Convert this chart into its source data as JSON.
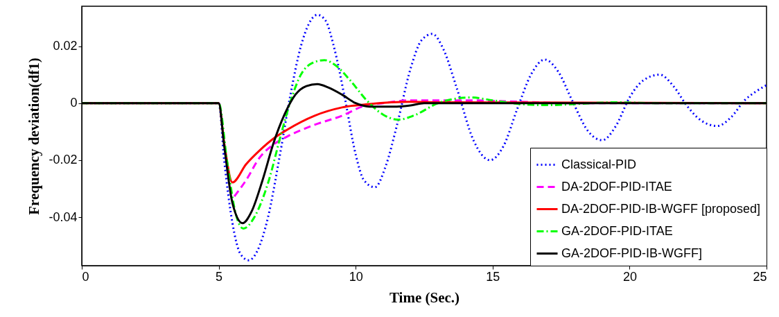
{
  "chart_data": {
    "type": "line",
    "xlabel": "Time (Sec.)",
    "ylabel": "Frequency deviation(df1)",
    "xlim": [
      0,
      25
    ],
    "xticks": [
      0,
      5,
      10,
      15,
      20,
      25
    ],
    "ylim": [
      -0.057,
      0.034
    ],
    "yticks": [
      -0.04,
      -0.02,
      0,
      0.02
    ],
    "grid": false,
    "legend": "bottom right",
    "series": [
      {
        "name": "Classical-PID",
        "color": "#0000ff",
        "line_style": "dotted",
        "x": [
          0,
          5,
          5.2,
          5.5,
          5.8,
          6.1,
          6.4,
          6.8,
          7.2,
          7.6,
          8.0,
          8.3,
          8.6,
          8.9,
          9.2,
          9.6,
          10.0,
          10.3,
          10.7,
          11.1,
          11.5,
          12.0,
          12.4,
          12.8,
          13.2,
          13.7,
          14.3,
          14.9,
          15.4,
          15.9,
          16.4,
          16.9,
          17.4,
          17.9,
          18.5,
          19.0,
          19.5,
          20.0,
          20.5,
          21.1,
          21.6,
          22.1,
          22.6,
          23.2,
          23.7,
          24.2,
          24.6,
          25
        ],
        "values": [
          0,
          0,
          -0.02,
          -0.042,
          -0.053,
          -0.0551,
          -0.052,
          -0.04,
          -0.02,
          0.002,
          0.02,
          0.028,
          0.031,
          0.029,
          0.02,
          0.002,
          -0.018,
          -0.027,
          -0.0295,
          -0.022,
          -0.008,
          0.012,
          0.022,
          0.0243,
          0.019,
          0.005,
          -0.013,
          -0.02,
          -0.015,
          -0.002,
          0.01,
          0.0153,
          0.011,
          0.001,
          -0.01,
          -0.013,
          -0.008,
          0.002,
          0.008,
          0.01,
          0.006,
          -0.001,
          -0.006,
          -0.008,
          -0.005,
          0.001,
          0.004,
          0.0063
        ]
      },
      {
        "name": "DA-2DOF-PID-ITAE",
        "color": "#ff00ff",
        "line_style": "dashed",
        "x": [
          5.57,
          6.0,
          6.5,
          7.0,
          7.5,
          8.5,
          9.5,
          10.3,
          11,
          12,
          14,
          16,
          18,
          25
        ],
        "values": [
          -0.0327,
          -0.027,
          -0.019,
          -0.0145,
          -0.0117,
          -0.0076,
          -0.0044,
          -0.001,
          0,
          0.001,
          0.001,
          0.0005,
          0,
          0
        ]
      },
      {
        "name": "DA-2DOF-PID-IB-WGFF [proposed]",
        "color": "#ff0000",
        "line_style": "solid",
        "x": [
          0,
          5,
          5.2,
          5.5,
          6.0,
          6.5,
          7.0,
          7.5,
          8.5,
          9.5,
          10.5,
          12,
          13,
          25
        ],
        "values": [
          0,
          0,
          -0.014,
          -0.0278,
          -0.0214,
          -0.0165,
          -0.0124,
          -0.0093,
          -0.0044,
          -0.0015,
          -0.0003,
          0.0005,
          0.0003,
          0
        ]
      },
      {
        "name": "GA-2DOF-PID-ITAE",
        "color": "#00ff00",
        "line_style": "dashdot",
        "x": [
          0,
          5,
          5.3,
          5.6,
          5.9,
          6.3,
          6.8,
          7.3,
          7.6,
          8.0,
          8.4,
          8.86,
          9.3,
          9.8,
          10.4,
          11.0,
          11.54,
          12.2,
          13.0,
          13.6,
          14.2,
          15.0,
          16.0,
          17.0,
          18.0,
          19.5,
          21,
          25
        ],
        "values": [
          0,
          0,
          -0.02,
          -0.038,
          -0.044,
          -0.04,
          -0.028,
          -0.01,
          0,
          0.01,
          0.014,
          0.0151,
          0.013,
          0.008,
          0.001,
          -0.004,
          -0.0058,
          -0.004,
          0,
          0.0015,
          0.002,
          0.001,
          -0.0003,
          -0.0007,
          -0.0003,
          0.0003,
          0,
          0
        ]
      },
      {
        "name": "GA-2DOF-PID-IB-WGFF]",
        "color": "#000000",
        "line_style": "solid",
        "x": [
          0,
          5,
          5.2,
          5.5,
          5.87,
          6.2,
          6.6,
          7.0,
          7.4,
          7.8,
          8.2,
          8.6,
          9.0,
          9.5,
          10.0,
          10.5,
          11.5,
          12.0,
          12.5,
          25
        ],
        "values": [
          0,
          0,
          -0.015,
          -0.035,
          -0.0421,
          -0.038,
          -0.027,
          -0.014,
          -0.004,
          0.003,
          0.006,
          0.0067,
          0.0055,
          0.003,
          0,
          -0.0012,
          -0.0012,
          -0.0008,
          0,
          0
        ]
      }
    ]
  }
}
